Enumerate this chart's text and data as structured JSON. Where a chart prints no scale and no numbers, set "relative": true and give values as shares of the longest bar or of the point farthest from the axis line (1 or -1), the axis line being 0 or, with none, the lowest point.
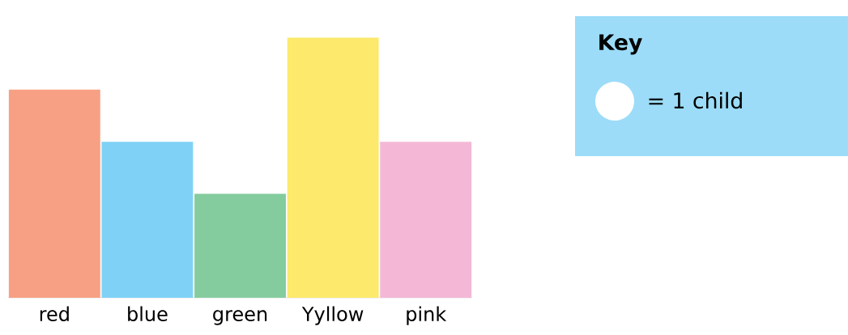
{
  "chart_data": {
    "type": "bar",
    "relative": true,
    "categories": [
      "red",
      "blue",
      "green",
      "Yyllow",
      "pink"
    ],
    "values": [
      0.8,
      0.6,
      0.4,
      1,
      0.6
    ],
    "colors": [
      "#f7a084",
      "#7fd2f6",
      "#84cc9e",
      "#fde96c",
      "#f4b8d6"
    ],
    "annotations": [
      "Key",
      "= 1 child"
    ]
  }
}
